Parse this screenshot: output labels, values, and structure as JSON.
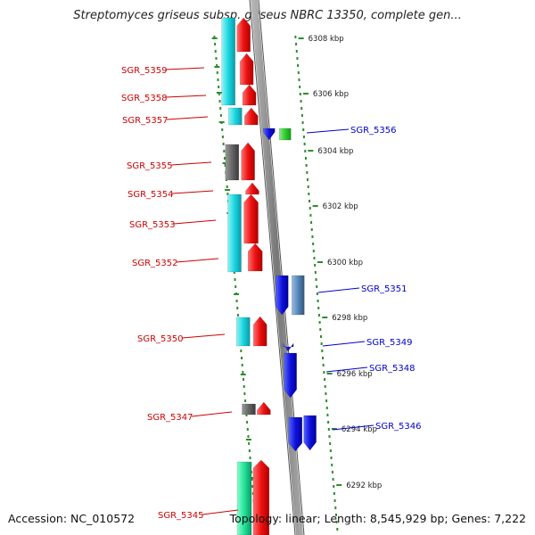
{
  "title": "Streptomyces griseus subsp. griseus NBRC 13350, complete gen...",
  "footer": {
    "accession": "Accession: NC_010572",
    "info": "Topology: linear; Length: 8,545,929 bp; Genes: 7,222"
  },
  "colors": {
    "left_label": "#cc0000",
    "right_label": "#0000cc",
    "tick": "#2e8b2e",
    "forward_gene": "#ee1111",
    "reverse_gene": "#1111dd",
    "axis": "#888888"
  },
  "ticks": [
    "6308 kbp",
    "6306 kbp",
    "6304 kbp",
    "6302 kbp",
    "6300 kbp",
    "6298 kbp",
    "6296 kbp",
    "6294 kbp",
    "6292 kbp"
  ],
  "left_genes": [
    "SGR_5359",
    "SGR_5358",
    "SGR_5357",
    "SGR_5355",
    "SGR_5354",
    "SGR_5353",
    "SGR_5352",
    "SGR_5350",
    "SGR_5347",
    "SGR_5345"
  ],
  "right_genes": [
    "SGR_5356",
    "SGR_5351",
    "SGR_5349",
    "SGR_5348",
    "SGR_5346"
  ]
}
